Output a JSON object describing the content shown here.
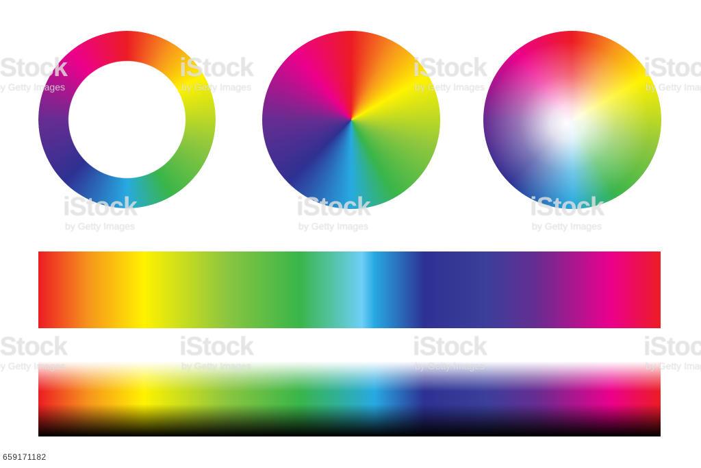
{
  "watermark": {
    "brand": "iStock",
    "credit": "by Getty Images"
  },
  "image_id": "659171182",
  "colors": {
    "red": "#ec1c24",
    "orange": "#f7941d",
    "yellow": "#fff200",
    "green": "#39b54a",
    "cyan": "#27aae1",
    "blue": "#2e3192",
    "violet": "#662d91",
    "magenta": "#ec008c"
  }
}
